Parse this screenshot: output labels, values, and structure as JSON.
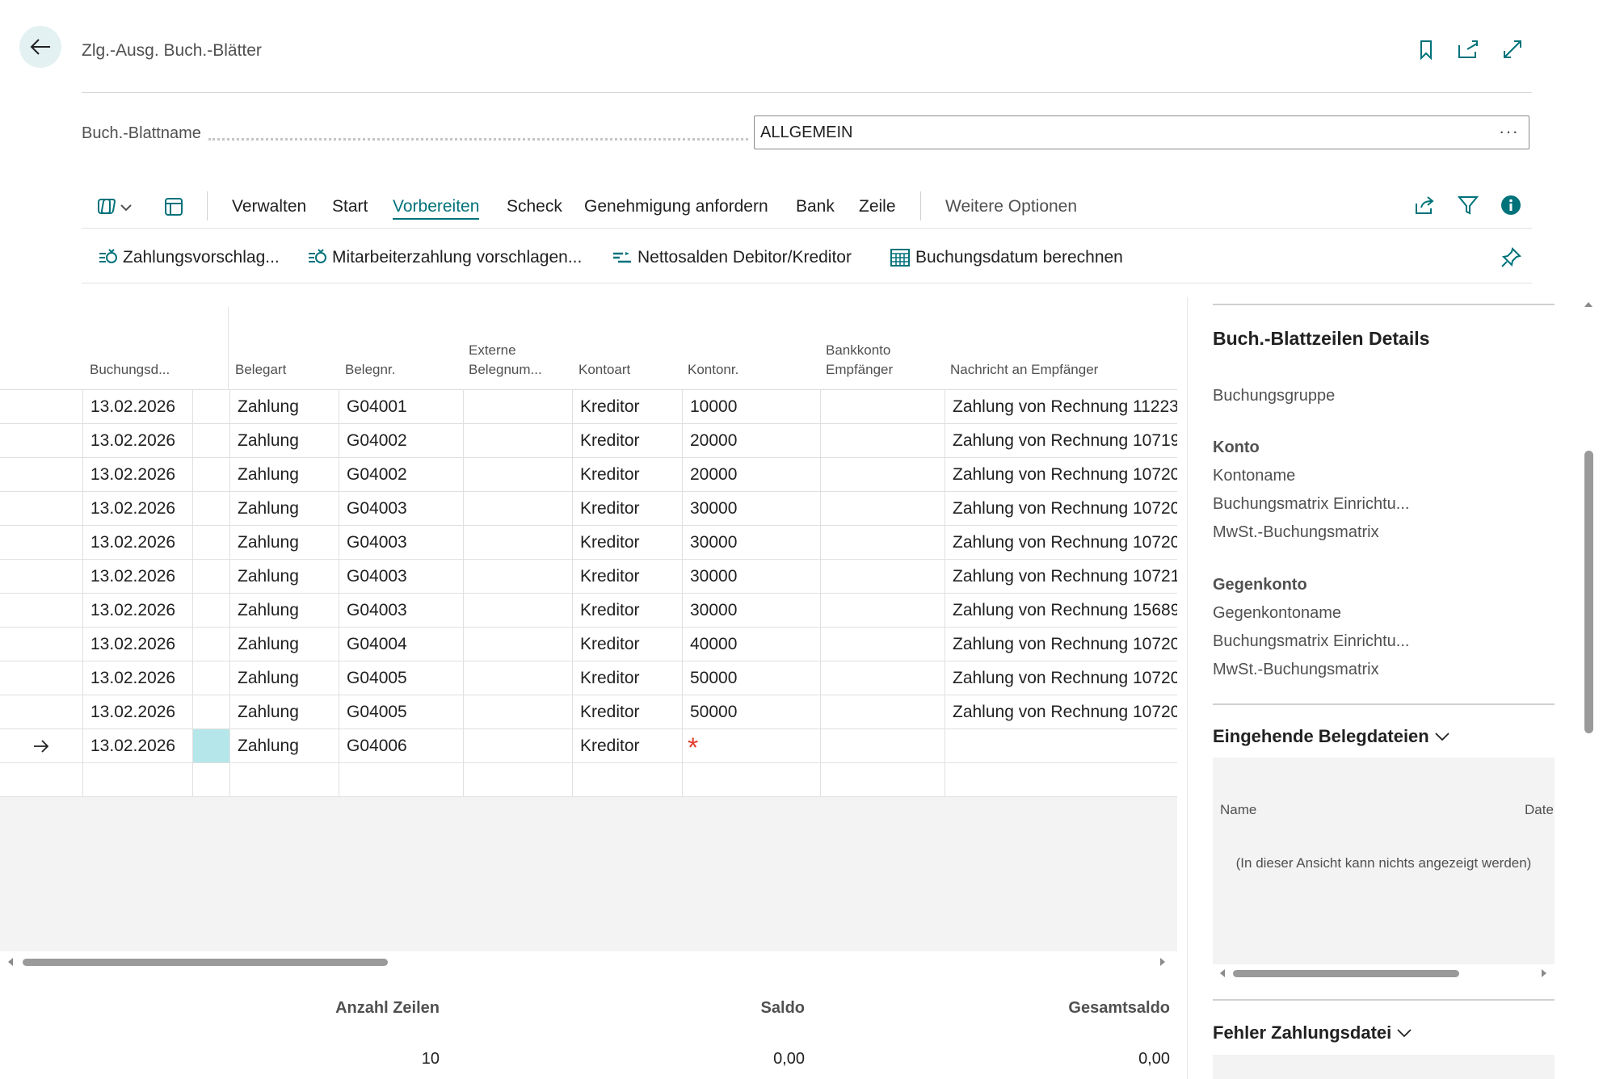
{
  "header": {
    "title": "Zlg.-Ausg. Buch.-Blätter",
    "icons": [
      "back-arrow-icon",
      "bookmark-icon",
      "open-new-window-icon",
      "expand-icon"
    ]
  },
  "field": {
    "label": "Buch.-Blattname",
    "value": "ALLGEMEIN",
    "more": "···"
  },
  "menu": {
    "items": [
      "Verwalten",
      "Start",
      "Vorbereiten",
      "Scheck",
      "Genehmigung anfordern",
      "Bank",
      "Zeile"
    ],
    "active": "Vorbereiten",
    "more": "Weitere Optionen"
  },
  "actions": [
    {
      "label": "Zahlungsvorschlag...",
      "icon": "suggest-payment-icon"
    },
    {
      "label": "Mitarbeiterzahlung vorschlagen...",
      "icon": "suggest-employee-payment-icon"
    },
    {
      "label": "Nettosalden Debitor/Kreditor",
      "icon": "net-balance-icon"
    },
    {
      "label": "Buchungsdatum berechnen",
      "icon": "calendar-calc-icon"
    }
  ],
  "grid": {
    "columns": {
      "buchungsdatum": "Buchungsd...",
      "belegart": "Belegart",
      "belegnr": "Belegnr.",
      "externe1": "Externe",
      "externe2": "Belegnum...",
      "kontoart": "Kontoart",
      "kontonr": "Kontonr.",
      "bankkonto1": "Bankkonto",
      "bankkonto2": "Empfänger",
      "nachricht": "Nachricht an Empfänger"
    },
    "rows": [
      {
        "date": "13.02.2026",
        "type": "Zahlung",
        "doc": "G04001",
        "acctype": "Kreditor",
        "acc": "10000",
        "msg": "Zahlung von Rechnung 11223"
      },
      {
        "date": "13.02.2026",
        "type": "Zahlung",
        "doc": "G04002",
        "acctype": "Kreditor",
        "acc": "20000",
        "msg": "Zahlung von Rechnung 10719"
      },
      {
        "date": "13.02.2026",
        "type": "Zahlung",
        "doc": "G04002",
        "acctype": "Kreditor",
        "acc": "20000",
        "msg": "Zahlung von Rechnung 10720"
      },
      {
        "date": "13.02.2026",
        "type": "Zahlung",
        "doc": "G04003",
        "acctype": "Kreditor",
        "acc": "30000",
        "msg": "Zahlung von Rechnung 10720"
      },
      {
        "date": "13.02.2026",
        "type": "Zahlung",
        "doc": "G04003",
        "acctype": "Kreditor",
        "acc": "30000",
        "msg": "Zahlung von Rechnung 10720"
      },
      {
        "date": "13.02.2026",
        "type": "Zahlung",
        "doc": "G04003",
        "acctype": "Kreditor",
        "acc": "30000",
        "msg": "Zahlung von Rechnung 10721"
      },
      {
        "date": "13.02.2026",
        "type": "Zahlung",
        "doc": "G04003",
        "acctype": "Kreditor",
        "acc": "30000",
        "msg": "Zahlung von Rechnung 15689"
      },
      {
        "date": "13.02.2026",
        "type": "Zahlung",
        "doc": "G04004",
        "acctype": "Kreditor",
        "acc": "40000",
        "msg": "Zahlung von Rechnung 10720"
      },
      {
        "date": "13.02.2026",
        "type": "Zahlung",
        "doc": "G04005",
        "acctype": "Kreditor",
        "acc": "50000",
        "msg": "Zahlung von Rechnung 10720"
      },
      {
        "date": "13.02.2026",
        "type": "Zahlung",
        "doc": "G04005",
        "acctype": "Kreditor",
        "acc": "50000",
        "msg": "Zahlung von Rechnung 10720"
      },
      {
        "date": "13.02.2026",
        "type": "Zahlung",
        "doc": "G04006",
        "acctype": "Kreditor",
        "acc": "*",
        "msg": ""
      }
    ]
  },
  "totals": {
    "count_label": "Anzahl Zeilen",
    "count_value": "10",
    "balance_label": "Saldo",
    "balance_value": "0,00",
    "total_label": "Gesamtsaldo",
    "total_value": "0,00"
  },
  "factbox": {
    "title": "Buch.-Blattzeilen Details",
    "buchungsgruppe": "Buchungsgruppe",
    "konto_title": "Konto",
    "konto_items": [
      "Kontoname",
      "Buchungsmatrix Einrichtu...",
      "MwSt.-Buchungsmatrix"
    ],
    "gegenkonto_title": "Gegenkonto",
    "gegenkonto_items": [
      "Gegenkontoname",
      "Buchungsmatrix Einrichtu...",
      "MwSt.-Buchungsmatrix"
    ],
    "files_title": "Eingehende Belegdateien",
    "files_col_name": "Name",
    "files_col_date": "Date",
    "files_empty": "(In dieser Ansicht kann nichts angezeigt werden)",
    "errors_title": "Fehler Zahlungsdatei"
  },
  "colors": {
    "accent": "#00727a",
    "selected": "#b5e7ea",
    "required": "#e23c2e"
  }
}
